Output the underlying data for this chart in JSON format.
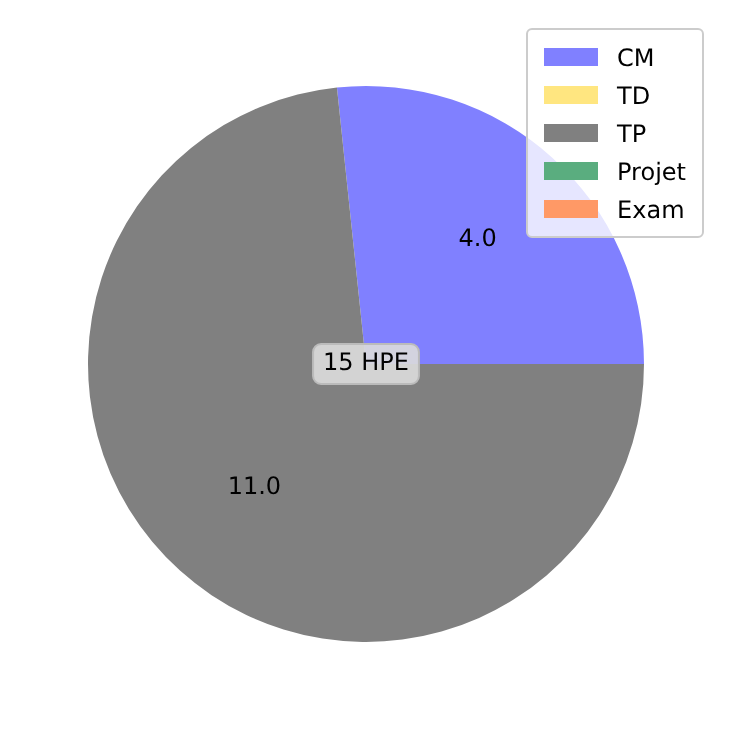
{
  "chart_data": {
    "type": "pie",
    "categories": [
      "CM",
      "TD",
      "TP",
      "Projet",
      "Exam"
    ],
    "values": [
      4,
      0,
      11,
      0,
      0
    ],
    "colors": [
      "#8080ff",
      "#ffe680",
      "#808080",
      "#5aad7f",
      "#ff9966"
    ],
    "value_labels": [
      "4.0",
      null,
      "11.0",
      null,
      null
    ],
    "annotations": [
      "15 HPE"
    ],
    "legend": "top right"
  }
}
